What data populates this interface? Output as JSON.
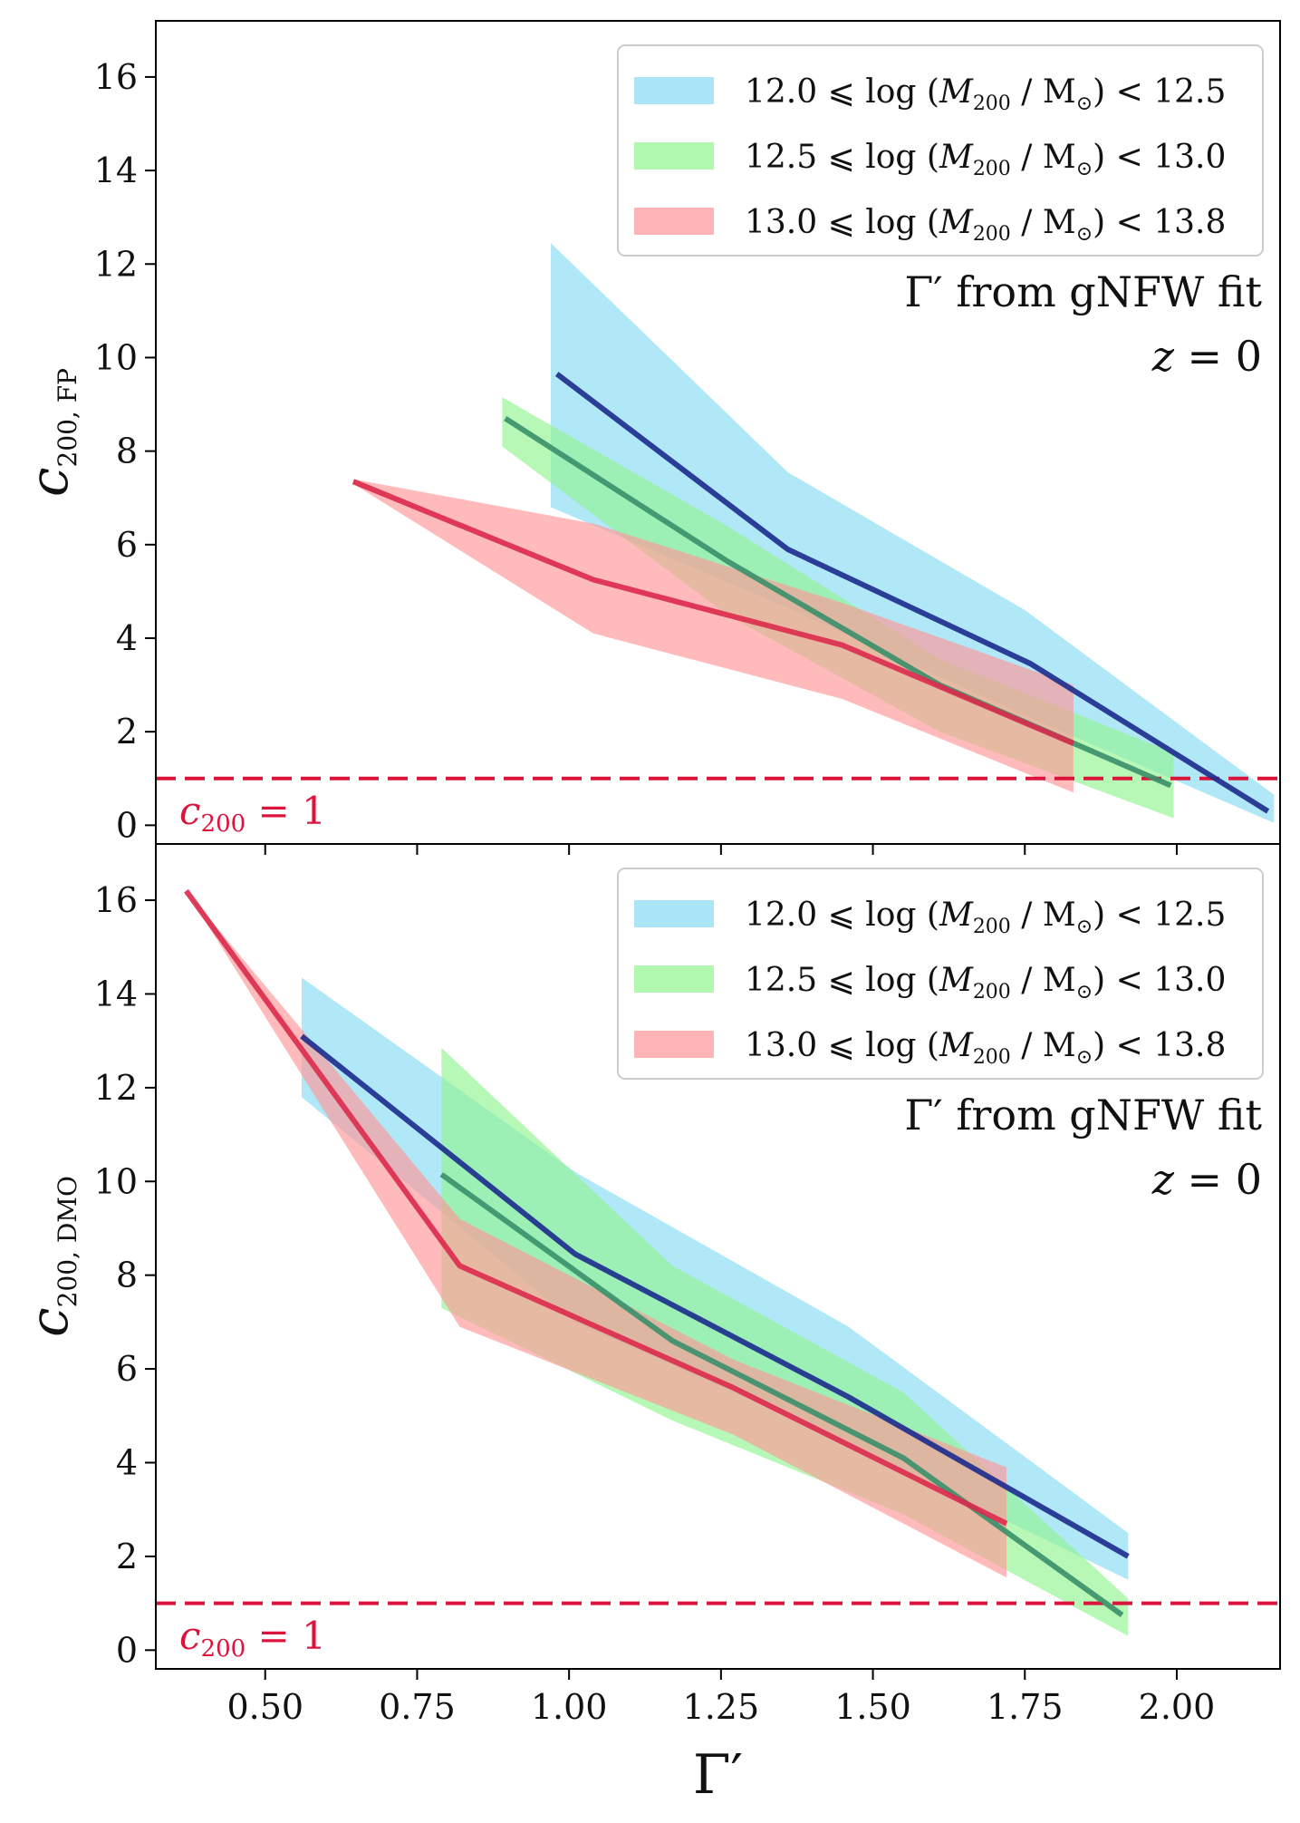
{
  "chart_data": [
    {
      "type": "line",
      "panel": "top",
      "ylabel": "c",
      "ylabel_sub": "200, FP",
      "xlim": [
        0.32,
        2.17
      ],
      "ylim": [
        -0.4,
        17.2
      ],
      "yticks": [
        0,
        2,
        4,
        6,
        8,
        10,
        12,
        14,
        16
      ],
      "xticks": [
        0.5,
        0.75,
        1.0,
        1.25,
        1.5,
        1.75,
        2.0
      ],
      "show_xtick_labels": false,
      "annotation_line1": "Γ′ from gNFW fit",
      "annotation_line2_var": "z",
      "annotation_line2_eq": " = 0",
      "ref_line": {
        "y": 1,
        "color": "#dc143c",
        "label_var": "c",
        "label_sub": "200",
        "label_eq": " = 1"
      },
      "legend": [
        {
          "prefix": "12.0 ⩽ log (",
          "M": "M",
          "sub": "200",
          "mid": " / M",
          "sun": "⊙",
          "suffix": ") < 12.5",
          "color": "#87dcf5"
        },
        {
          "prefix": "12.5 ⩽ log (",
          "M": "M",
          "sub": "200",
          "mid": " / M",
          "sun": "⊙",
          "suffix": ") < 13.0",
          "color": "#90f590"
        },
        {
          "prefix": "13.0 ⩽ log (",
          "M": "M",
          "sub": "200",
          "mid": " / M",
          "sun": "⊙",
          "suffix": ") < 13.8",
          "color": "#ff9696"
        }
      ],
      "series": [
        {
          "name": "12.0 ⩽ log(M200/M☉) < 12.5",
          "line_color": "#1c2a8c",
          "fill_color": "#87dcf5",
          "x": [
            0.98,
            1.36,
            1.76,
            2.15
          ],
          "y": [
            9.65,
            5.9,
            3.45,
            0.3
          ],
          "band_x": [
            0.97,
            1.36,
            1.75,
            2.16
          ],
          "band_upper": [
            12.45,
            7.55,
            4.6,
            0.65
          ],
          "band_lower": [
            6.8,
            4.65,
            2.35,
            0.05
          ]
        },
        {
          "name": "12.5 ⩽ log(M200/M☉) < 13.0",
          "line_color": "#3a8f6a",
          "fill_color": "#90f590",
          "x": [
            0.895,
            1.26,
            1.61,
            1.99
          ],
          "y": [
            8.7,
            5.65,
            3.0,
            0.85
          ],
          "band_x": [
            0.89,
            1.26,
            1.61,
            1.995
          ],
          "band_upper": [
            9.15,
            6.4,
            3.55,
            1.55
          ],
          "band_lower": [
            8.1,
            4.5,
            2.0,
            0.15
          ]
        },
        {
          "name": "13.0 ⩽ log(M200/M☉) < 13.8",
          "line_color": "#dc2a4c",
          "fill_color": "#ff9696",
          "x": [
            0.645,
            1.04,
            1.45,
            1.83
          ],
          "y": [
            7.35,
            5.25,
            3.85,
            1.75
          ],
          "band_x": [
            0.645,
            1.04,
            1.45,
            1.83
          ],
          "band_upper": [
            7.4,
            6.45,
            4.75,
            3.0
          ],
          "band_lower": [
            7.3,
            4.1,
            2.7,
            0.7
          ]
        }
      ]
    },
    {
      "type": "line",
      "panel": "bottom",
      "ylabel": "c",
      "ylabel_sub": "200, DMO",
      "xlabel": "Γ′",
      "xlim": [
        0.32,
        2.17
      ],
      "ylim": [
        -0.4,
        17.2
      ],
      "yticks": [
        0,
        2,
        4,
        6,
        8,
        10,
        12,
        14,
        16
      ],
      "xticks": [
        0.5,
        0.75,
        1.0,
        1.25,
        1.5,
        1.75,
        2.0
      ],
      "xtick_labels": [
        "0.50",
        "0.75",
        "1.00",
        "1.25",
        "1.50",
        "1.75",
        "2.00"
      ],
      "show_xtick_labels": true,
      "annotation_line1": "Γ′ from gNFW fit",
      "annotation_line2_var": "z",
      "annotation_line2_eq": " = 0",
      "ref_line": {
        "y": 1,
        "color": "#dc143c",
        "label_var": "c",
        "label_sub": "200",
        "label_eq": " = 1"
      },
      "legend": [
        {
          "prefix": "12.0 ⩽ log (",
          "M": "M",
          "sub": "200",
          "mid": " / M",
          "sun": "⊙",
          "suffix": ") < 12.5",
          "color": "#87dcf5"
        },
        {
          "prefix": "12.5 ⩽ log (",
          "M": "M",
          "sub": "200",
          "mid": " / M",
          "sun": "⊙",
          "suffix": ") < 13.0",
          "color": "#90f590"
        },
        {
          "prefix": "13.0 ⩽ log (",
          "M": "M",
          "sub": "200",
          "mid": " / M",
          "sun": "⊙",
          "suffix": ") < 13.8",
          "color": "#ff9696"
        }
      ],
      "series": [
        {
          "name": "12.0 ⩽ log(M200/M☉) < 12.5",
          "line_color": "#1c2a8c",
          "fill_color": "#87dcf5",
          "x": [
            0.56,
            1.01,
            1.46,
            1.92
          ],
          "y": [
            13.1,
            8.45,
            5.4,
            2.0
          ],
          "band_x": [
            0.56,
            1.01,
            1.46,
            1.92
          ],
          "band_upper": [
            14.35,
            10.2,
            6.9,
            2.5
          ],
          "band_lower": [
            11.8,
            7.0,
            4.4,
            1.5
          ]
        },
        {
          "name": "12.5 ⩽ log(M200/M☉) < 13.0",
          "line_color": "#3a8f6a",
          "fill_color": "#90f590",
          "x": [
            0.79,
            1.17,
            1.55,
            1.91
          ],
          "y": [
            10.15,
            6.6,
            4.1,
            0.75
          ],
          "band_x": [
            0.79,
            1.17,
            1.55,
            1.92
          ],
          "band_upper": [
            12.85,
            8.2,
            5.5,
            1.1
          ],
          "band_lower": [
            7.3,
            4.9,
            2.9,
            0.3
          ]
        },
        {
          "name": "13.0 ⩽ log(M200/M☉) < 13.8",
          "line_color": "#dc2a4c",
          "fill_color": "#ff9696",
          "x": [
            0.37,
            0.82,
            1.27,
            1.72
          ],
          "y": [
            16.2,
            8.2,
            5.6,
            2.7
          ],
          "band_x": [
            0.37,
            0.82,
            1.27,
            1.72
          ],
          "band_upper": [
            16.2,
            9.2,
            6.2,
            3.9
          ],
          "band_lower": [
            16.2,
            6.9,
            4.6,
            1.55
          ]
        }
      ]
    }
  ]
}
